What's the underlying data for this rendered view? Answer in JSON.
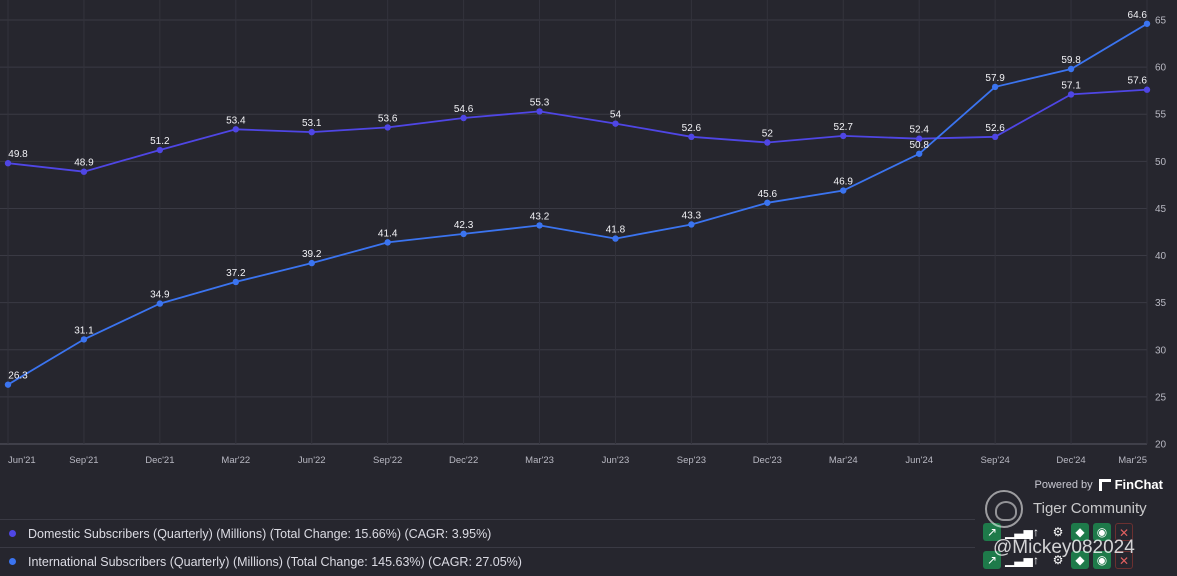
{
  "chart_data": {
    "type": "line",
    "categories": [
      "Jun'21",
      "Sep'21",
      "Dec'21",
      "Mar'22",
      "Jun'22",
      "Sep'22",
      "Dec'22",
      "Mar'23",
      "Jun'23",
      "Sep'23",
      "Dec'23",
      "Mar'24",
      "Jun'24",
      "Sep'24",
      "Dec'24",
      "Mar'25"
    ],
    "series": [
      {
        "name": "Domestic Subscribers (Quarterly) (Millions) (Total Change: 15.66%) (CAGR: 3.95%)",
        "color": "#4f46e5",
        "values": [
          49.8,
          48.9,
          51.2,
          53.4,
          53.1,
          53.6,
          54.6,
          55.3,
          54,
          52.6,
          52,
          52.7,
          52.4,
          52.6,
          57.1,
          57.6
        ],
        "labels": [
          "49.8",
          "48.9",
          "51.2",
          "53.4",
          "53.1",
          "53.6",
          "54.6",
          "55.3",
          "54",
          "52.6",
          "52",
          "52.7",
          "52.4",
          "52.6",
          "57.1",
          "57.6"
        ]
      },
      {
        "name": "International Subscribers (Quarterly) (Millions) (Total Change: 145.63%) (CAGR: 27.05%)",
        "color": "#3b74f0",
        "values": [
          26.3,
          31.1,
          34.9,
          37.2,
          39.2,
          41.4,
          42.3,
          43.2,
          41.8,
          43.3,
          45.6,
          46.9,
          50.8,
          57.9,
          59.8,
          64.6
        ],
        "labels": [
          "26.3",
          "31.1",
          "34.9",
          "37.2",
          "39.2",
          "41.4",
          "42.3",
          "43.2",
          "41.8",
          "43.3",
          "45.6",
          "46.9",
          "50.8",
          "57.9",
          "59.8",
          "64.6"
        ]
      }
    ],
    "ylim": [
      20,
      65
    ],
    "yticks": [
      "20",
      "25",
      "30",
      "35",
      "40",
      "45",
      "50",
      "55",
      "60",
      "65"
    ],
    "grid": true,
    "legend": "bottom"
  },
  "branding": {
    "powered_by": "Powered by",
    "brand": "FinChat"
  },
  "watermark": {
    "title": "Tiger Community",
    "user": "@Mickey082024"
  },
  "toolbar": {
    "icons": [
      "chart-line-icon",
      "bar-chart-icon",
      "sort-icon",
      "gear-icon",
      "tag-icon",
      "eye-icon",
      "close-icon"
    ]
  }
}
